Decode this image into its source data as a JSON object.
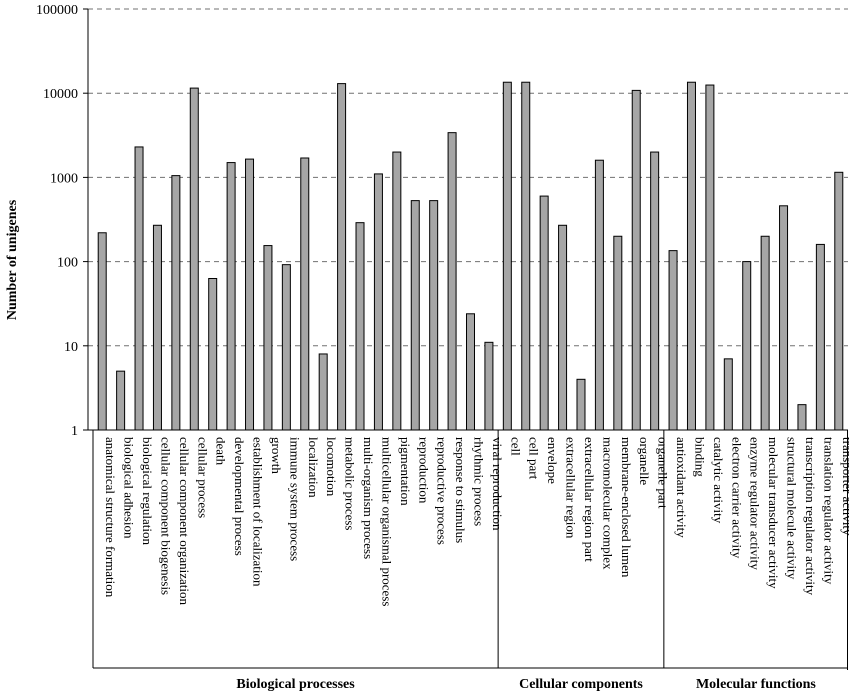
{
  "chart_data": {
    "type": "bar",
    "ylabel": "Number of unigenes",
    "yscale": "log",
    "ylim": [
      1,
      100000
    ],
    "yticks": [
      "1",
      "10",
      "100",
      "1000",
      "10000",
      "100000"
    ],
    "grid": true,
    "categories": [
      "anatomical structure formation",
      "biological adhesion",
      "biological regulation",
      "cellular component biogenesis",
      "cellular component organization",
      "cellular process",
      "death",
      "developmental process",
      "establishment of localization",
      "growth",
      "immune system process",
      "localization",
      "locomotion",
      "metabolic process",
      "multi-organism process",
      "multicellular organismal process",
      "pigmentation",
      "reproduction",
      "reproductive process",
      "response to stimulus",
      "rhythmic process",
      "viral reproduction",
      "cell",
      "cell part",
      "envelope",
      "extracellular region",
      "extracellular region part",
      "macromolecular complex",
      "membrane-enclosed lumen",
      "organelle",
      "organelle part",
      "antioxidant activity",
      "binding",
      "catalytic activity",
      "electron carrier activity",
      "enzyme regulator activity",
      "molecular transducer activity",
      "structural molecule activity",
      "transcription regulator activity",
      "translation regulator activity",
      "transporter activity"
    ],
    "values": [
      220,
      5,
      2300,
      270,
      1050,
      11500,
      63,
      1500,
      1650,
      155,
      92,
      1700,
      8,
      13000,
      290,
      1100,
      2000,
      530,
      530,
      3400,
      24,
      11,
      13500,
      13500,
      600,
      270,
      4,
      1600,
      200,
      10800,
      2000,
      135,
      13500,
      12500,
      7,
      100,
      200,
      460,
      2,
      160,
      1150
    ],
    "groups": [
      {
        "label": "Biological processes",
        "count": 22
      },
      {
        "label": "Cellular components",
        "count": 9
      },
      {
        "label": "Molecular functions",
        "count": 10
      }
    ]
  }
}
